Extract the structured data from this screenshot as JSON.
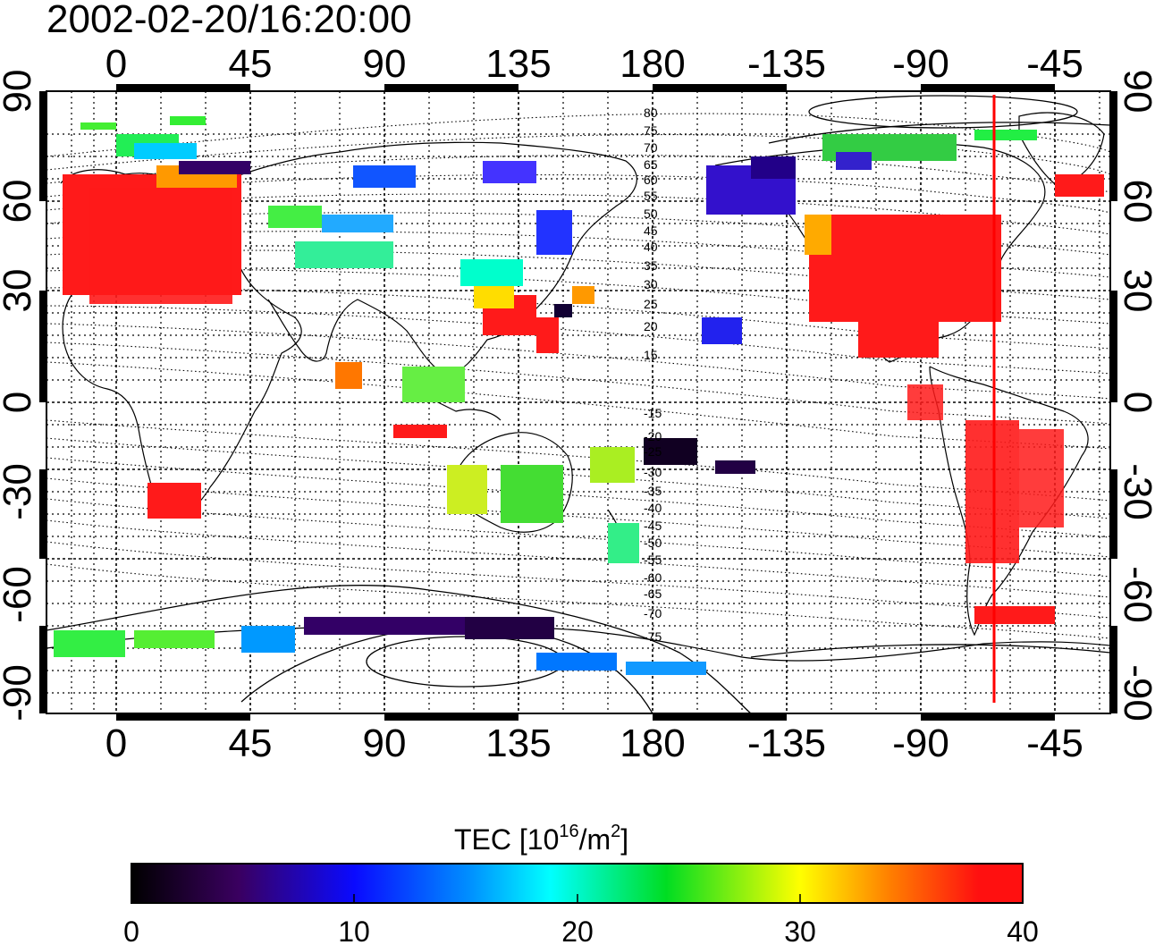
{
  "title": "2002-02-20/16:20:00",
  "lon_ticks_top": [
    "0",
    "45",
    "90",
    "135",
    "180",
    "-135",
    "-90",
    "-45"
  ],
  "lon_ticks_bottom": [
    "0",
    "45",
    "90",
    "135",
    "180",
    "-135",
    "-90",
    "-45"
  ],
  "lat_ticks_left": [
    "90",
    "60",
    "30",
    "0",
    "-30",
    "-60",
    "-90"
  ],
  "lat_ticks_right": [
    "90",
    "60",
    "30",
    "0",
    "-30",
    "-60",
    "-90"
  ],
  "contour_labels": [
    "80",
    "75",
    "70",
    "65",
    "60",
    "55",
    "50",
    "45",
    "40",
    "35",
    "30",
    "25",
    "20",
    "15",
    "-15",
    "-20",
    "-25",
    "-30",
    "-35",
    "-40",
    "-45",
    "-50",
    "-55",
    "-60",
    "-65",
    "-70",
    "-75"
  ],
  "colorbar": {
    "label_main": "TEC  [10",
    "label_sup1": "16",
    "label_mid": "/m",
    "label_sup2": "2",
    "label_end": "]",
    "ticks": [
      "0",
      "10",
      "20",
      "30",
      "40"
    ],
    "range": [
      0,
      40
    ]
  },
  "colors": {
    "marker_line": "#ff0000",
    "high_tec": "#ff1a1a"
  }
}
